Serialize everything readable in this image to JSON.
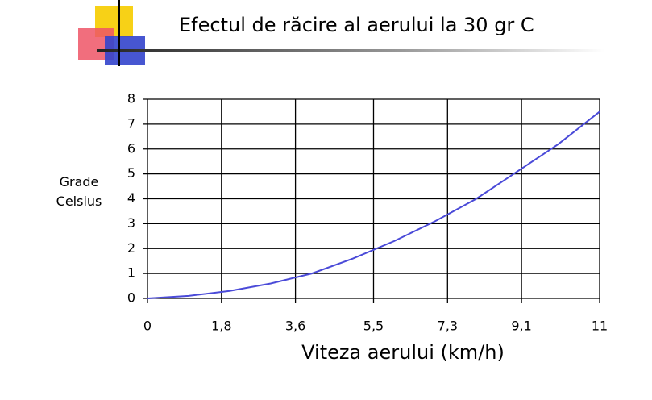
{
  "chart_data": {
    "type": "line",
    "title": "Efectul de răcire al aerului la 30 gr C",
    "xlabel": "Viteza aerului (km/h)",
    "ylabel": "Grade Celsius",
    "x": [
      0,
      1,
      2,
      3,
      4,
      5,
      6,
      7,
      8,
      9,
      10,
      11
    ],
    "values": [
      0,
      0.1,
      0.3,
      0.6,
      1.0,
      1.6,
      2.3,
      3.1,
      4.0,
      5.1,
      6.2,
      7.5
    ],
    "color": "#4a4ad8",
    "xlim": [
      0,
      11
    ],
    "ylim": [
      0,
      8
    ],
    "xticks": [
      0,
      {
        "value": 1.8,
        "label": "1,8"
      },
      {
        "value": 3.6,
        "label": "3,6"
      },
      {
        "value": 5.5,
        "label": "5,5"
      },
      {
        "value": 7.3,
        "label": "7,3"
      },
      {
        "value": 9.1,
        "label": "9,1"
      },
      11
    ],
    "yticks": [
      0,
      1,
      2,
      3,
      4,
      5,
      6,
      7,
      8
    ],
    "grid": true
  }
}
